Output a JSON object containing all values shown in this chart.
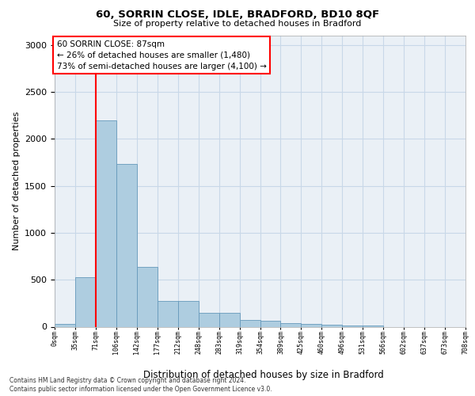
{
  "title": "60, SORRIN CLOSE, IDLE, BRADFORD, BD10 8QF",
  "subtitle": "Size of property relative to detached houses in Bradford",
  "xlabel": "Distribution of detached houses by size in Bradford",
  "ylabel": "Number of detached properties",
  "bar_values": [
    30,
    530,
    2200,
    1730,
    640,
    270,
    270,
    150,
    150,
    70,
    60,
    40,
    30,
    20,
    10,
    10,
    0,
    0,
    0,
    0
  ],
  "bar_labels": [
    "0sqm",
    "35sqm",
    "71sqm",
    "106sqm",
    "142sqm",
    "177sqm",
    "212sqm",
    "248sqm",
    "283sqm",
    "319sqm",
    "354sqm",
    "389sqm",
    "425sqm",
    "460sqm",
    "496sqm",
    "531sqm",
    "566sqm",
    "602sqm",
    "637sqm",
    "673sqm",
    "708sqm"
  ],
  "bar_color": "#aecde0",
  "bar_edge_color": "#6699bb",
  "annotation_box_text": "60 SORRIN CLOSE: 87sqm\n← 26% of detached houses are smaller (1,480)\n73% of semi-detached houses are larger (4,100) →",
  "red_line_x": 2.0,
  "ylim": [
    0,
    3100
  ],
  "yticks": [
    0,
    500,
    1000,
    1500,
    2000,
    2500,
    3000
  ],
  "footer_line1": "Contains HM Land Registry data © Crown copyright and database right 2024.",
  "footer_line2": "Contains public sector information licensed under the Open Government Licence v3.0.",
  "bg_color": "#eaf0f6",
  "grid_color": "#c8d8e8"
}
